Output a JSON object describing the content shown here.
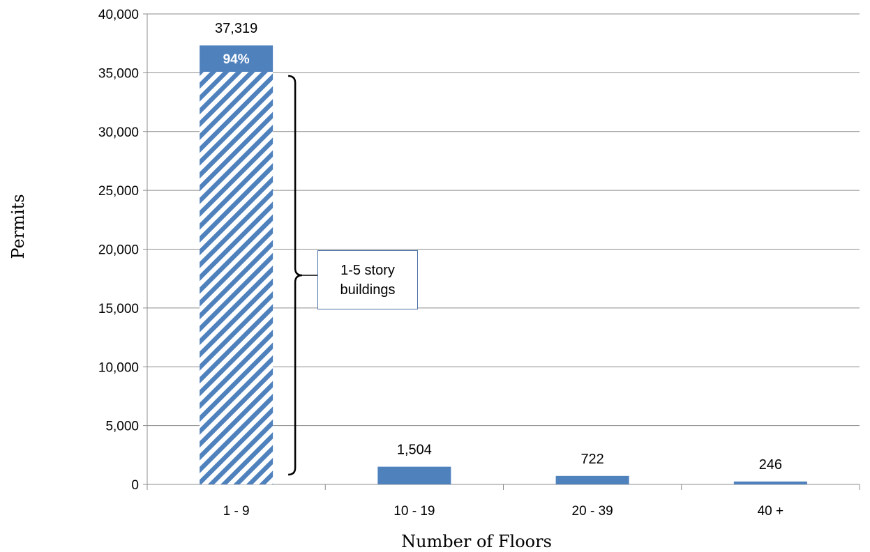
{
  "chart_data": {
    "type": "bar",
    "categories": [
      "1 - 9",
      "10 - 19",
      "20 - 39",
      "40 +"
    ],
    "values": [
      37319,
      1504,
      722,
      246
    ],
    "data_labels": [
      "37,319",
      "1,504",
      "722",
      "246"
    ],
    "xlabel": "Number of Floors",
    "ylabel": "Permits",
    "ylim": [
      0,
      40000
    ],
    "yticks": [
      0,
      5000,
      10000,
      15000,
      20000,
      25000,
      30000,
      35000,
      40000
    ],
    "ytick_labels": [
      "0",
      "5,000",
      "10,000",
      "15,000",
      "20,000",
      "25,000",
      "30,000",
      "35,000",
      "40,000"
    ],
    "grid": true,
    "bar_color": "#4f81bd",
    "highlight": {
      "category": "1 - 9",
      "value": 35080,
      "percent_label": "94%",
      "pattern": "diagonal-hatch"
    },
    "annotation": {
      "lines": [
        "1-5 story",
        "buildings"
      ]
    }
  }
}
